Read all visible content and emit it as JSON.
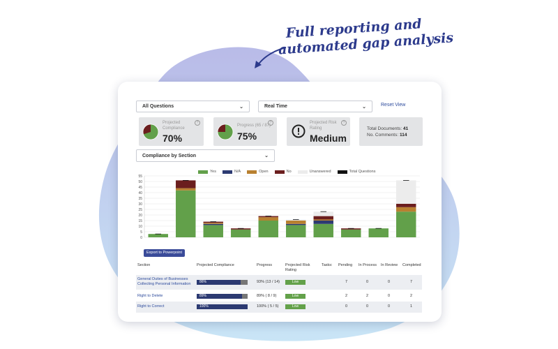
{
  "caption": {
    "line1": "Full reporting and",
    "line2": "automated gap analysis"
  },
  "controls": {
    "questions_select": "All Questions",
    "time_select": "Real Time",
    "reset_link": "Reset View",
    "section_select": "Compliance by Section"
  },
  "kpis": {
    "projected_compliance": {
      "label": "Projected Compliance",
      "value": "70%",
      "fraction": 0.7
    },
    "progress": {
      "label": "Progress (65 / 87)",
      "value": "75%",
      "fraction": 0.75
    },
    "risk": {
      "label": "Projected Risk Rating",
      "value": "Medium"
    },
    "totals": {
      "documents_label": "Total Documents:",
      "documents_value": "41",
      "comments_label": "No. Comments:",
      "comments_value": "114"
    }
  },
  "colors": {
    "yes": "#62a04a",
    "na": "#2c3a72",
    "open": "#b88030",
    "no": "#6b1e1e",
    "unanswered": "#ececec",
    "total": "#111111",
    "accent": "#3a4b99"
  },
  "chart_data": {
    "type": "bar",
    "stacked": true,
    "legend": [
      "Yes",
      "N/A",
      "Open",
      "No",
      "Unanswered",
      "Total Questions"
    ],
    "legend_position": "top",
    "ylim": [
      0,
      55
    ],
    "yticks": [
      "0",
      "5",
      "10",
      "15",
      "20",
      "25",
      "30",
      "35",
      "40",
      "45",
      "50",
      "55"
    ],
    "grid": true,
    "series": [
      {
        "name": "Yes",
        "values": [
          3,
          42,
          11,
          7,
          15,
          11,
          12,
          7,
          8,
          23
        ]
      },
      {
        "name": "N/A",
        "values": [
          0,
          0,
          1,
          0,
          0,
          1,
          3,
          0,
          0,
          0
        ]
      },
      {
        "name": "Open",
        "values": [
          0,
          2,
          1,
          0,
          3,
          3,
          1,
          0,
          0,
          4
        ]
      },
      {
        "name": "No",
        "values": [
          0,
          7,
          1,
          1,
          1,
          0,
          3,
          1,
          0,
          3
        ]
      },
      {
        "name": "Unanswered",
        "values": [
          0,
          0,
          0,
          0,
          0,
          1,
          4,
          0,
          0,
          21
        ]
      }
    ],
    "totals": [
      3,
      51,
      14,
      8,
      19,
      16,
      23,
      8,
      8,
      51
    ]
  },
  "export_button": "Export to Powerpoint",
  "table": {
    "headers": {
      "section": "Section",
      "compliance": "Projected Compliance",
      "progress": "Progress",
      "risk": "Projected Risk Rating",
      "tasks": "Tasks:",
      "pending": "Pending",
      "in_process": "In Process",
      "in_review": "In Review",
      "completed": "Completed"
    },
    "rows": [
      {
        "section": "General Duties of Businesses Collecting Personal Information",
        "compliance": "86%",
        "compliance_fraction": 0.86,
        "progress": "93% (13 / 14)",
        "risk": "Low",
        "pending": "7",
        "in_process": "0",
        "in_review": "0",
        "completed": "7"
      },
      {
        "section": "Right to Delete",
        "compliance": "89%",
        "compliance_fraction": 0.89,
        "progress": "89% ( 8 / 9)",
        "risk": "Low",
        "pending": "2",
        "in_process": "2",
        "in_review": "0",
        "completed": "2"
      },
      {
        "section": "Right to Correct",
        "compliance": "100%",
        "compliance_fraction": 1.0,
        "progress": "100% ( 5 / 5)",
        "risk": "Low",
        "pending": "0",
        "in_process": "0",
        "in_review": "0",
        "completed": "1"
      }
    ]
  }
}
